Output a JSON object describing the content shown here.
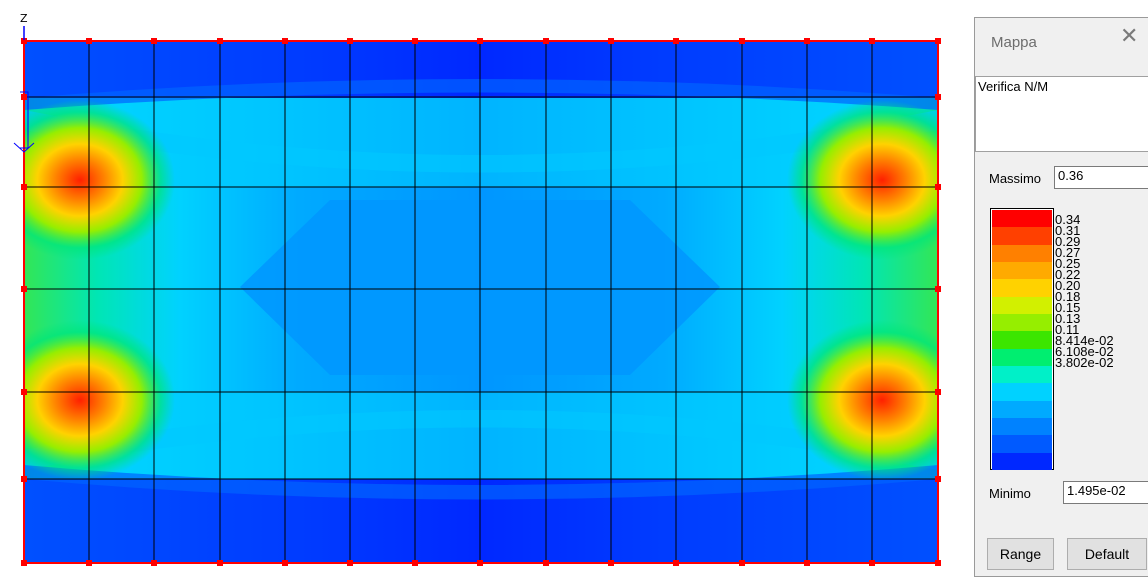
{
  "viewport": {
    "axis_label": "Z"
  },
  "legend_panel": {
    "title": "Mappa",
    "close_glyph": "✕",
    "description": "Verifica N/M",
    "max_label": "Massimo",
    "max_value": "0.36",
    "min_label": "Minimo",
    "min_value": "1.495e-02",
    "levels": [
      "0.34",
      "0.31",
      "0.29",
      "0.27",
      "0.25",
      "0.22",
      "0.20",
      "0.18",
      "0.15",
      "0.13",
      "0.11",
      "8.414e-02",
      "6.108e-02",
      "3.802e-02"
    ],
    "colors": [
      "#ff0000",
      "#ff4000",
      "#ff8000",
      "#ffaa00",
      "#ffd200",
      "#d2f000",
      "#96ee00",
      "#3ce600",
      "#00ee70",
      "#00f0c8",
      "#00d2ff",
      "#00aaff",
      "#0082ff",
      "#005aff",
      "#0028ff"
    ],
    "range_button": "Range",
    "default_button": "Default"
  }
}
